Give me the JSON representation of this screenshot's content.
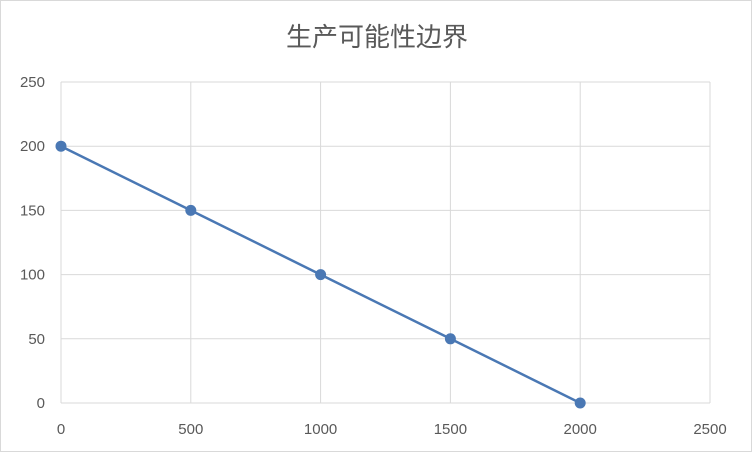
{
  "chart_data": {
    "type": "scatter",
    "title": "生产可能性边界",
    "xlabel": "",
    "ylabel": "",
    "xlim": [
      0,
      2500
    ],
    "ylim": [
      0,
      250
    ],
    "x_ticks": [
      0,
      500,
      1000,
      1500,
      2000,
      2500
    ],
    "y_ticks": [
      0,
      50,
      100,
      150,
      200,
      250
    ],
    "grid": true,
    "legend": "none",
    "series": [
      {
        "x": [
          0,
          500,
          1000,
          1500,
          2000
        ],
        "y": [
          200,
          150,
          100,
          50,
          0
        ],
        "color": "#4a78b4",
        "markers": true,
        "lines": "straight"
      }
    ]
  }
}
